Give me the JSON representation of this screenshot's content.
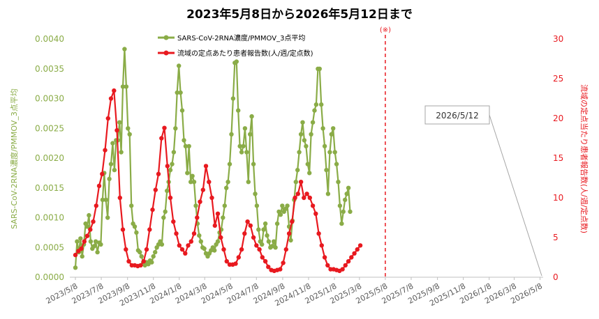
{
  "chart_data": {
    "type": "line",
    "title": "2023年5月8日から2026年5月12日まで",
    "ylabel_left": "SARS-CoV-2RNA濃度/PMMOV_3点平均",
    "ylabel_right": "流域の定点当たり患者報告数(人/週/定点数)",
    "ylim_left": [
      0,
      0.004
    ],
    "ylim_right": [
      0,
      30
    ],
    "yticks_left": [
      "0.0000",
      "0.0005",
      "0.0010",
      "0.0015",
      "0.0020",
      "0.0025",
      "0.0030",
      "0.0035",
      "0.0040"
    ],
    "yticks_right": [
      "0",
      "5",
      "10",
      "15",
      "20",
      "25",
      "30"
    ],
    "x_start": "2023-05-08",
    "x_end": "2026-05-12",
    "xtick_labels": [
      "2023/5/8",
      "2023/7/8",
      "2023/9/8",
      "2023/11/8",
      "2024/1/8",
      "2024/3/8",
      "2024/5/8",
      "2024/7/8",
      "2024/9/8",
      "2024/11/8",
      "2025/1/8",
      "2025/3/8",
      "2025/5/8",
      "2025/7/8",
      "2025/9/8",
      "2025/11/8",
      "2026/1/8",
      "2026/3/8",
      "2026/5/8"
    ],
    "grid": false,
    "legend_position": "top-center",
    "note_marker": {
      "label": "(※)",
      "date": "2025-05-08"
    },
    "callout": {
      "label": "2026/5/12",
      "date": "2026-05-12"
    },
    "colors": {
      "series1": "#8aac47",
      "series2": "#e8191f",
      "axis_left": "#8aac47",
      "axis_right": "#e8191f"
    },
    "series": [
      {
        "name": "SARS-CoV-2RNA濃度/PMMOV_3点平均",
        "axis": "left",
        "marker": "circle",
        "points": [
          [
            "2023-05-08",
            0.00016
          ],
          [
            "2023-05-12",
            0.0006
          ],
          [
            "2023-05-16",
            0.00042
          ],
          [
            "2023-05-20",
            0.00065
          ],
          [
            "2023-05-24",
            0.00035
          ],
          [
            "2023-05-28",
            0.00055
          ],
          [
            "2023-06-01",
            0.0009
          ],
          [
            "2023-06-05",
            0.00085
          ],
          [
            "2023-06-09",
            0.00104
          ],
          [
            "2023-06-13",
            0.0006
          ],
          [
            "2023-06-17",
            0.00048
          ],
          [
            "2023-06-21",
            0.00052
          ],
          [
            "2023-06-25",
            0.0006
          ],
          [
            "2023-06-29",
            0.00042
          ],
          [
            "2023-07-03",
            0.00058
          ],
          [
            "2023-07-07",
            0.00055
          ],
          [
            "2023-07-11",
            0.0013
          ],
          [
            "2023-07-15",
            0.00175
          ],
          [
            "2023-07-19",
            0.0013
          ],
          [
            "2023-07-23",
            0.001
          ],
          [
            "2023-07-27",
            0.00165
          ],
          [
            "2023-07-31",
            0.0019
          ],
          [
            "2023-08-04",
            0.00225
          ],
          [
            "2023-08-08",
            0.0018
          ],
          [
            "2023-08-12",
            0.0023
          ],
          [
            "2023-08-16",
            0.0023
          ],
          [
            "2023-08-20",
            0.0026
          ],
          [
            "2023-08-24",
            0.0021
          ],
          [
            "2023-08-28",
            0.0032
          ],
          [
            "2023-09-01",
            0.00383
          ],
          [
            "2023-09-05",
            0.0032
          ],
          [
            "2023-09-09",
            0.0025
          ],
          [
            "2023-09-13",
            0.0024
          ],
          [
            "2023-09-17",
            0.0012
          ],
          [
            "2023-09-21",
            0.0009
          ],
          [
            "2023-09-25",
            0.00085
          ],
          [
            "2023-09-29",
            0.00075
          ],
          [
            "2023-10-03",
            0.00045
          ],
          [
            "2023-10-07",
            0.00042
          ],
          [
            "2023-10-11",
            0.00035
          ],
          [
            "2023-10-15",
            0.00025
          ],
          [
            "2023-10-19",
            0.0002
          ],
          [
            "2023-10-23",
            0.00025
          ],
          [
            "2023-10-27",
            0.00022
          ],
          [
            "2023-10-31",
            0.00028
          ],
          [
            "2023-11-04",
            0.00025
          ],
          [
            "2023-11-08",
            0.00035
          ],
          [
            "2023-11-12",
            0.00042
          ],
          [
            "2023-11-16",
            0.0005
          ],
          [
            "2023-11-20",
            0.00055
          ],
          [
            "2023-11-24",
            0.0006
          ],
          [
            "2023-11-28",
            0.00055
          ],
          [
            "2023-12-02",
            0.001
          ],
          [
            "2023-12-06",
            0.0011
          ],
          [
            "2023-12-10",
            0.00145
          ],
          [
            "2023-12-14",
            0.0016
          ],
          [
            "2023-12-18",
            0.0018
          ],
          [
            "2023-12-22",
            0.0019
          ],
          [
            "2023-12-26",
            0.0021
          ],
          [
            "2023-12-30",
            0.0025
          ],
          [
            "2024-01-03",
            0.0031
          ],
          [
            "2024-01-07",
            0.00355
          ],
          [
            "2024-01-11",
            0.0031
          ],
          [
            "2024-01-15",
            0.0028
          ],
          [
            "2024-01-19",
            0.0023
          ],
          [
            "2024-01-23",
            0.0022
          ],
          [
            "2024-01-27",
            0.00175
          ],
          [
            "2024-01-31",
            0.0022
          ],
          [
            "2024-02-04",
            0.0016
          ],
          [
            "2024-02-08",
            0.0017
          ],
          [
            "2024-02-12",
            0.0016
          ],
          [
            "2024-02-16",
            0.0012
          ],
          [
            "2024-02-20",
            0.0009
          ],
          [
            "2024-02-24",
            0.0007
          ],
          [
            "2024-02-28",
            0.0006
          ],
          [
            "2024-03-03",
            0.0005
          ],
          [
            "2024-03-07",
            0.00048
          ],
          [
            "2024-03-11",
            0.0004
          ],
          [
            "2024-03-15",
            0.00035
          ],
          [
            "2024-03-19",
            0.0004
          ],
          [
            "2024-03-23",
            0.00045
          ],
          [
            "2024-03-27",
            0.0005
          ],
          [
            "2024-03-31",
            0.00045
          ],
          [
            "2024-04-04",
            0.00055
          ],
          [
            "2024-04-08",
            0.0006
          ],
          [
            "2024-04-12",
            0.00075
          ],
          [
            "2024-04-16",
            0.0008
          ],
          [
            "2024-04-20",
            0.001
          ],
          [
            "2024-04-24",
            0.0012
          ],
          [
            "2024-04-28",
            0.0015
          ],
          [
            "2024-05-02",
            0.0016
          ],
          [
            "2024-05-06",
            0.0019
          ],
          [
            "2024-05-10",
            0.0024
          ],
          [
            "2024-05-14",
            0.003
          ],
          [
            "2024-05-18",
            0.0036
          ],
          [
            "2024-05-22",
            0.00362
          ],
          [
            "2024-05-26",
            0.0028
          ],
          [
            "2024-05-30",
            0.0022
          ],
          [
            "2024-06-03",
            0.0021
          ],
          [
            "2024-06-07",
            0.0022
          ],
          [
            "2024-06-11",
            0.0025
          ],
          [
            "2024-06-15",
            0.0021
          ],
          [
            "2024-06-19",
            0.0016
          ],
          [
            "2024-06-23",
            0.0024
          ],
          [
            "2024-06-27",
            0.0027
          ],
          [
            "2024-07-01",
            0.0019
          ],
          [
            "2024-07-05",
            0.0014
          ],
          [
            "2024-07-09",
            0.0012
          ],
          [
            "2024-07-13",
            0.0008
          ],
          [
            "2024-07-17",
            0.0006
          ],
          [
            "2024-07-21",
            0.00055
          ],
          [
            "2024-07-25",
            0.0008
          ],
          [
            "2024-07-29",
            0.0009
          ],
          [
            "2024-08-02",
            0.0007
          ],
          [
            "2024-08-06",
            0.0006
          ],
          [
            "2024-08-10",
            0.0005
          ],
          [
            "2024-08-14",
            0.00052
          ],
          [
            "2024-08-18",
            0.0006
          ],
          [
            "2024-08-22",
            0.0005
          ],
          [
            "2024-08-26",
            0.0009
          ],
          [
            "2024-08-30",
            0.0011
          ],
          [
            "2024-09-03",
            0.00105
          ],
          [
            "2024-09-07",
            0.0012
          ],
          [
            "2024-09-11",
            0.0011
          ],
          [
            "2024-09-15",
            0.00115
          ],
          [
            "2024-09-19",
            0.0012
          ],
          [
            "2024-09-23",
            0.00085
          ],
          [
            "2024-09-27",
            0.00062
          ],
          [
            "2024-10-01",
            0.00095
          ],
          [
            "2024-10-05",
            0.0013
          ],
          [
            "2024-10-09",
            0.0016
          ],
          [
            "2024-10-13",
            0.0018
          ],
          [
            "2024-10-17",
            0.0021
          ],
          [
            "2024-10-21",
            0.0024
          ],
          [
            "2024-10-25",
            0.0026
          ],
          [
            "2024-10-29",
            0.0023
          ],
          [
            "2024-11-02",
            0.0022
          ],
          [
            "2024-11-06",
            0.0019
          ],
          [
            "2024-11-10",
            0.00175
          ],
          [
            "2024-11-14",
            0.0024
          ],
          [
            "2024-11-18",
            0.0026
          ],
          [
            "2024-11-22",
            0.0028
          ],
          [
            "2024-11-26",
            0.0029
          ],
          [
            "2024-11-30",
            0.0035
          ],
          [
            "2024-12-04",
            0.0035
          ],
          [
            "2024-12-08",
            0.0029
          ],
          [
            "2024-12-12",
            0.0025
          ],
          [
            "2024-12-16",
            0.0022
          ],
          [
            "2024-12-20",
            0.0018
          ],
          [
            "2024-12-24",
            0.0014
          ],
          [
            "2024-12-28",
            0.0021
          ],
          [
            "2025-01-01",
            0.0024
          ],
          [
            "2025-01-05",
            0.0025
          ],
          [
            "2025-01-09",
            0.0021
          ],
          [
            "2025-01-13",
            0.0019
          ],
          [
            "2025-01-17",
            0.0016
          ],
          [
            "2025-01-21",
            0.0012
          ],
          [
            "2025-01-25",
            0.0009
          ],
          [
            "2025-01-29",
            0.0011
          ],
          [
            "2025-02-02",
            0.0013
          ],
          [
            "2025-02-06",
            0.0014
          ],
          [
            "2025-02-10",
            0.0015
          ],
          [
            "2025-02-14",
            0.0011
          ]
        ]
      },
      {
        "name": "流域の定点あたり患者報告数(人/週/定点数)",
        "axis": "right",
        "marker": "circle",
        "points": [
          [
            "2023-05-08",
            2.8
          ],
          [
            "2023-05-15",
            3.3
          ],
          [
            "2023-05-22",
            3.6
          ],
          [
            "2023-05-29",
            4.5
          ],
          [
            "2023-06-05",
            5.2
          ],
          [
            "2023-06-12",
            6.0
          ],
          [
            "2023-06-19",
            7.0
          ],
          [
            "2023-06-26",
            9.0
          ],
          [
            "2023-07-03",
            11.5
          ],
          [
            "2023-07-10",
            13.0
          ],
          [
            "2023-07-17",
            16.0
          ],
          [
            "2023-07-24",
            20.0
          ],
          [
            "2023-07-31",
            22.5
          ],
          [
            "2023-08-07",
            23.5
          ],
          [
            "2023-08-14",
            18.5
          ],
          [
            "2023-08-21",
            10.0
          ],
          [
            "2023-08-28",
            6.0
          ],
          [
            "2023-09-04",
            3.5
          ],
          [
            "2023-09-11",
            2.0
          ],
          [
            "2023-09-18",
            1.5
          ],
          [
            "2023-09-25",
            1.5
          ],
          [
            "2023-10-02",
            1.4
          ],
          [
            "2023-10-09",
            1.5
          ],
          [
            "2023-10-16",
            2.0
          ],
          [
            "2023-10-23",
            3.5
          ],
          [
            "2023-10-30",
            6.0
          ],
          [
            "2023-11-06",
            8.5
          ],
          [
            "2023-11-13",
            11.0
          ],
          [
            "2023-11-20",
            13.0
          ],
          [
            "2023-11-27",
            17.5
          ],
          [
            "2023-12-04",
            18.8
          ],
          [
            "2023-12-11",
            14.0
          ],
          [
            "2023-12-18",
            10.0
          ],
          [
            "2023-12-25",
            7.0
          ],
          [
            "2024-01-01",
            5.5
          ],
          [
            "2024-01-08",
            4.0
          ],
          [
            "2024-01-15",
            3.5
          ],
          [
            "2024-01-22",
            3.0
          ],
          [
            "2024-01-29",
            4.0
          ],
          [
            "2024-02-05",
            4.5
          ],
          [
            "2024-02-12",
            5.5
          ],
          [
            "2024-02-19",
            7.5
          ],
          [
            "2024-02-26",
            9.5
          ],
          [
            "2024-03-04",
            11.0
          ],
          [
            "2024-03-11",
            14.0
          ],
          [
            "2024-03-18",
            12.0
          ],
          [
            "2024-03-25",
            10.0
          ],
          [
            "2024-04-01",
            6.5
          ],
          [
            "2024-04-08",
            8.0
          ],
          [
            "2024-04-15",
            5.0
          ],
          [
            "2024-04-22",
            3.5
          ],
          [
            "2024-04-29",
            2.0
          ],
          [
            "2024-05-06",
            1.6
          ],
          [
            "2024-05-13",
            1.6
          ],
          [
            "2024-05-20",
            1.7
          ],
          [
            "2024-05-27",
            2.5
          ],
          [
            "2024-06-03",
            3.5
          ],
          [
            "2024-06-10",
            5.5
          ],
          [
            "2024-06-17",
            7.0
          ],
          [
            "2024-06-24",
            6.5
          ],
          [
            "2024-07-01",
            5.0
          ],
          [
            "2024-07-08",
            4.0
          ],
          [
            "2024-07-15",
            3.5
          ],
          [
            "2024-07-22",
            2.5
          ],
          [
            "2024-07-29",
            2.0
          ],
          [
            "2024-08-05",
            1.3
          ],
          [
            "2024-08-12",
            0.9
          ],
          [
            "2024-08-19",
            0.8
          ],
          [
            "2024-08-26",
            0.9
          ],
          [
            "2024-09-02",
            1.0
          ],
          [
            "2024-09-09",
            1.8
          ],
          [
            "2024-09-16",
            3.5
          ],
          [
            "2024-09-23",
            5.5
          ],
          [
            "2024-09-30",
            7.0
          ],
          [
            "2024-10-07",
            10.0
          ],
          [
            "2024-10-14",
            10.5
          ],
          [
            "2024-10-21",
            12.0
          ],
          [
            "2024-10-28",
            10.0
          ],
          [
            "2024-11-04",
            10.5
          ],
          [
            "2024-11-11",
            10.0
          ],
          [
            "2024-11-18",
            9.0
          ],
          [
            "2024-11-25",
            8.0
          ],
          [
            "2024-12-02",
            5.5
          ],
          [
            "2024-12-09",
            4.0
          ],
          [
            "2024-12-16",
            2.5
          ],
          [
            "2024-12-23",
            1.5
          ],
          [
            "2024-12-30",
            1.0
          ],
          [
            "2025-01-06",
            1.0
          ],
          [
            "2025-01-13",
            0.9
          ],
          [
            "2025-01-20",
            0.8
          ],
          [
            "2025-01-27",
            1.0
          ],
          [
            "2025-02-03",
            1.5
          ],
          [
            "2025-02-10",
            2.0
          ],
          [
            "2025-02-17",
            2.5
          ],
          [
            "2025-02-24",
            3.0
          ],
          [
            "2025-03-03",
            3.5
          ],
          [
            "2025-03-10",
            4.0
          ]
        ]
      }
    ]
  }
}
